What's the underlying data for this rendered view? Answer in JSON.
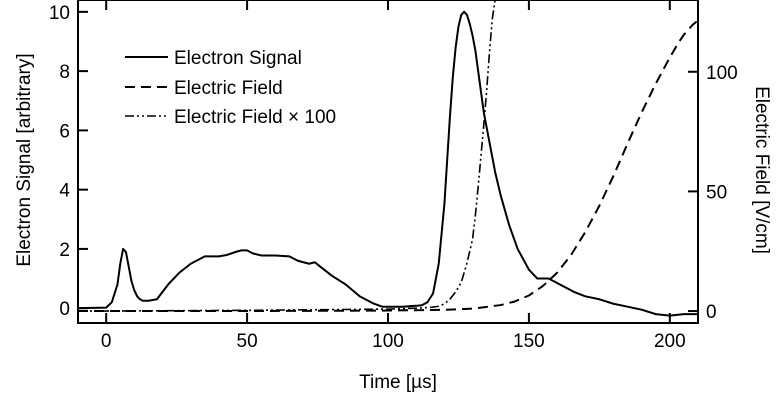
{
  "chart_data": {
    "type": "line",
    "title": "",
    "xlabel": "Time [µs]",
    "ylabel_left": "Electron Signal [arbitrary]",
    "ylabel_right": "Electric Field [V/cm]",
    "xlim": [
      -10,
      210
    ],
    "ylim_left": [
      -0.5,
      10.4
    ],
    "ylim_right": [
      -5,
      130
    ],
    "x_ticks": [
      0,
      50,
      100,
      150,
      200
    ],
    "y_left_ticks": [
      0,
      2,
      4,
      6,
      8,
      10
    ],
    "y_right_ticks": [
      0,
      50,
      100
    ],
    "grid": false,
    "legend_position": "top-left",
    "series": [
      {
        "name": "Electron Signal",
        "axis": "left",
        "style": "solid",
        "x": [
          -10,
          0,
          2,
          4,
          5,
          6,
          7,
          8,
          9,
          10,
          11,
          12,
          13,
          15,
          18,
          22,
          26,
          30,
          35,
          40,
          43,
          46,
          48,
          50,
          52,
          55,
          60,
          65,
          68,
          70,
          72,
          74,
          76,
          80,
          85,
          90,
          95,
          98,
          100,
          105,
          110,
          112,
          114,
          116,
          118,
          120,
          121,
          122,
          123,
          124,
          125,
          126,
          127,
          128,
          129,
          130,
          131,
          132,
          134,
          136,
          138,
          140,
          143,
          146,
          150,
          153,
          155,
          157,
          160,
          163,
          166,
          170,
          175,
          180,
          185,
          190,
          195,
          200,
          205,
          210
        ],
        "y": [
          0.0,
          0.02,
          0.2,
          0.8,
          1.5,
          2.0,
          1.9,
          1.4,
          0.9,
          0.6,
          0.4,
          0.3,
          0.25,
          0.25,
          0.3,
          0.8,
          1.2,
          1.5,
          1.75,
          1.75,
          1.8,
          1.9,
          1.95,
          1.95,
          1.85,
          1.78,
          1.78,
          1.75,
          1.6,
          1.55,
          1.5,
          1.55,
          1.4,
          1.1,
          0.8,
          0.4,
          0.15,
          0.05,
          0.05,
          0.05,
          0.08,
          0.1,
          0.2,
          0.5,
          1.5,
          3.5,
          5.0,
          6.5,
          7.8,
          8.8,
          9.5,
          9.9,
          10.0,
          9.9,
          9.6,
          9.2,
          8.7,
          8.0,
          6.6,
          5.6,
          4.6,
          3.8,
          2.8,
          2.0,
          1.3,
          1.0,
          1.0,
          1.0,
          0.85,
          0.7,
          0.55,
          0.4,
          0.3,
          0.15,
          0.05,
          -0.05,
          -0.2,
          -0.25,
          -0.2,
          -0.2
        ]
      },
      {
        "name": "Electric Field",
        "axis": "right",
        "style": "dashed",
        "x": [
          -10,
          0,
          50,
          100,
          120,
          130,
          140,
          145,
          150,
          155,
          160,
          165,
          170,
          175,
          180,
          185,
          190,
          195,
          200,
          203,
          205,
          208,
          210
        ],
        "y": [
          0,
          0,
          0,
          0.2,
          0.5,
          1.0,
          2.5,
          4.0,
          6.5,
          10.5,
          16.0,
          23.5,
          33.0,
          44.0,
          56.5,
          70.0,
          83.0,
          95.0,
          106.0,
          112.0,
          115.5,
          119.5,
          121.5
        ]
      },
      {
        "name": "Electric Field × 100",
        "axis": "right",
        "style": "dash-dot",
        "x": [
          -10,
          0,
          50,
          100,
          110,
          115,
          118,
          120,
          122,
          124,
          126,
          128,
          130,
          131,
          132,
          133,
          134,
          135,
          136,
          137,
          138
        ],
        "y": [
          0,
          0,
          0.3,
          0.8,
          1.2,
          1.5,
          2.0,
          3.0,
          5.0,
          8.0,
          12.0,
          20.0,
          30.0,
          40.0,
          52.0,
          65.0,
          78.0,
          92.0,
          108.0,
          122.0,
          130.0
        ]
      }
    ]
  }
}
